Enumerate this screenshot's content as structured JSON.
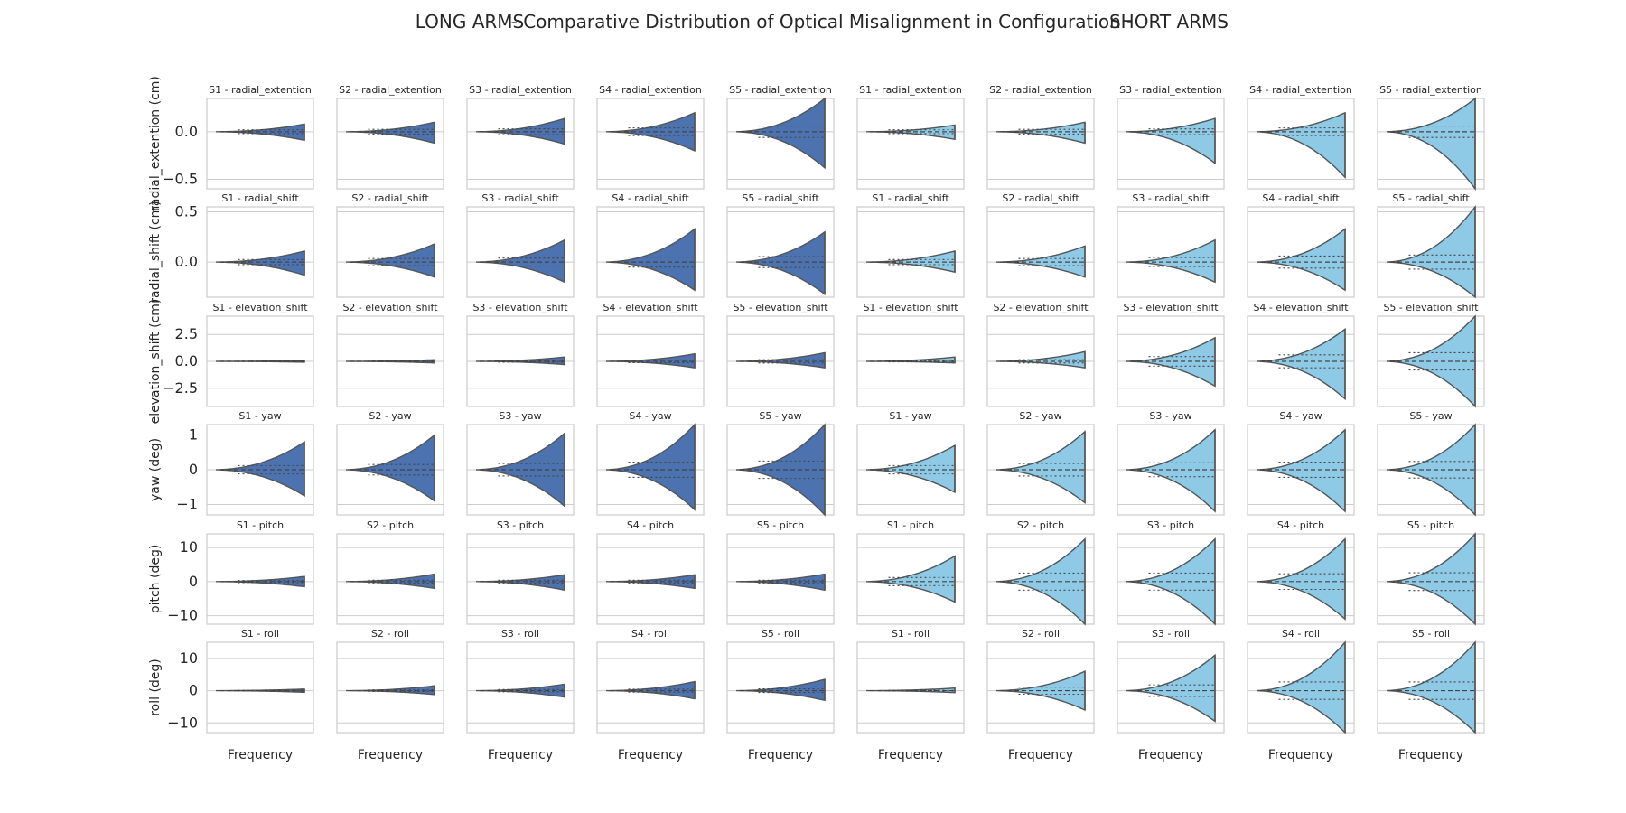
{
  "title": {
    "left": "LONG ARMS",
    "center": "- Comparative Distribution of Optical Misalignment in Configuration -",
    "right": "SHORT ARMS"
  },
  "colors": {
    "long_fill": "#4c72b0",
    "short_fill": "#8ecae6",
    "outline": "#555555",
    "grid": "#cccccc",
    "frame": "#cccccc"
  },
  "chart_data": {
    "type": "violin",
    "layout": "split half-violins, 6 rows x 10 columns; columns 1-5 LONG ARMS, columns 6-10 SHORT ARMS",
    "grid": true,
    "xlabel": "Frequency",
    "groups": [
      "LONG ARMS",
      "SHORT ARMS"
    ],
    "stages": [
      "S1",
      "S2",
      "S3",
      "S4",
      "S5"
    ],
    "rows": [
      {
        "param": "radial_extention",
        "ylabel": "radial_extention (cm)",
        "ylim": [
          -0.6,
          0.35
        ],
        "yticks": [
          0.0,
          -0.5
        ],
        "tick_labels": [
          "0.0",
          "−0.5"
        ],
        "long": [
          {
            "stage": "S1",
            "top": 0.08,
            "bottom": -0.09,
            "q_spread": 0.02
          },
          {
            "stage": "S2",
            "top": 0.1,
            "bottom": -0.12,
            "q_spread": 0.025
          },
          {
            "stage": "S3",
            "top": 0.14,
            "bottom": -0.13,
            "q_spread": 0.03
          },
          {
            "stage": "S4",
            "top": 0.2,
            "bottom": -0.2,
            "q_spread": 0.04
          },
          {
            "stage": "S5",
            "top": 0.35,
            "bottom": -0.38,
            "q_spread": 0.06
          }
        ],
        "short": [
          {
            "stage": "S1",
            "top": 0.07,
            "bottom": -0.08,
            "q_spread": 0.02
          },
          {
            "stage": "S2",
            "top": 0.1,
            "bottom": -0.12,
            "q_spread": 0.025
          },
          {
            "stage": "S3",
            "top": 0.14,
            "bottom": -0.33,
            "q_spread": 0.03
          },
          {
            "stage": "S4",
            "top": 0.2,
            "bottom": -0.48,
            "q_spread": 0.04
          },
          {
            "stage": "S5",
            "top": 0.35,
            "bottom": -0.6,
            "q_spread": 0.06
          }
        ]
      },
      {
        "param": "radial_shift",
        "ylabel": "radial_shift (cm)",
        "ylim": [
          -0.35,
          0.55
        ],
        "yticks": [
          0.5,
          0.0
        ],
        "tick_labels": [
          "0.5",
          "0.0"
        ],
        "long": [
          {
            "stage": "S1",
            "top": 0.11,
            "bottom": -0.13,
            "q_spread": 0.025
          },
          {
            "stage": "S2",
            "top": 0.18,
            "bottom": -0.15,
            "q_spread": 0.035
          },
          {
            "stage": "S3",
            "top": 0.22,
            "bottom": -0.2,
            "q_spread": 0.04
          },
          {
            "stage": "S4",
            "top": 0.33,
            "bottom": -0.28,
            "q_spread": 0.05
          },
          {
            "stage": "S5",
            "top": 0.3,
            "bottom": -0.32,
            "q_spread": 0.055
          }
        ],
        "short": [
          {
            "stage": "S1",
            "top": 0.11,
            "bottom": -0.1,
            "q_spread": 0.025
          },
          {
            "stage": "S2",
            "top": 0.16,
            "bottom": -0.15,
            "q_spread": 0.035
          },
          {
            "stage": "S3",
            "top": 0.22,
            "bottom": -0.2,
            "q_spread": 0.045
          },
          {
            "stage": "S4",
            "top": 0.33,
            "bottom": -0.28,
            "q_spread": 0.06
          },
          {
            "stage": "S5",
            "top": 0.55,
            "bottom": -0.35,
            "q_spread": 0.07
          }
        ]
      },
      {
        "param": "elevation_shift",
        "ylabel": "elevation_shift (cm)",
        "ylim": [
          -4.2,
          4.2
        ],
        "yticks": [
          2.5,
          0.0,
          -2.5
        ],
        "tick_labels": [
          "2.5",
          "0.0",
          "−2.5"
        ],
        "long": [
          {
            "stage": "S1",
            "top": 0.08,
            "bottom": -0.08,
            "q_spread": 0.02
          },
          {
            "stage": "S2",
            "top": 0.15,
            "bottom": -0.15,
            "q_spread": 0.03
          },
          {
            "stage": "S3",
            "top": 0.4,
            "bottom": -0.3,
            "q_spread": 0.08
          },
          {
            "stage": "S4",
            "top": 0.7,
            "bottom": -0.6,
            "q_spread": 0.12
          },
          {
            "stage": "S5",
            "top": 0.8,
            "bottom": -0.6,
            "q_spread": 0.15
          }
        ],
        "short": [
          {
            "stage": "S1",
            "top": 0.4,
            "bottom": -0.15,
            "q_spread": 0.05
          },
          {
            "stage": "S2",
            "top": 0.9,
            "bottom": -0.6,
            "q_spread": 0.15
          },
          {
            "stage": "S3",
            "top": 2.2,
            "bottom": -2.3,
            "q_spread": 0.45
          },
          {
            "stage": "S4",
            "top": 3.0,
            "bottom": -3.5,
            "q_spread": 0.6
          },
          {
            "stage": "S5",
            "top": 4.2,
            "bottom": -4.2,
            "q_spread": 0.8
          }
        ]
      },
      {
        "param": "yaw",
        "ylabel": "yaw (deg)",
        "ylim": [
          -1.3,
          1.3
        ],
        "yticks": [
          1,
          0,
          -1
        ],
        "tick_labels": [
          "1",
          "0",
          "−1"
        ],
        "long": [
          {
            "stage": "S1",
            "top": 0.8,
            "bottom": -0.75,
            "q_spread": 0.12
          },
          {
            "stage": "S2",
            "top": 1.0,
            "bottom": -0.9,
            "q_spread": 0.15
          },
          {
            "stage": "S3",
            "top": 1.05,
            "bottom": -1.05,
            "q_spread": 0.18
          },
          {
            "stage": "S4",
            "top": 1.3,
            "bottom": -1.15,
            "q_spread": 0.22
          },
          {
            "stage": "S5",
            "top": 1.3,
            "bottom": -1.3,
            "q_spread": 0.25
          }
        ],
        "short": [
          {
            "stage": "S1",
            "top": 0.7,
            "bottom": -0.65,
            "q_spread": 0.12
          },
          {
            "stage": "S2",
            "top": 1.1,
            "bottom": -0.95,
            "q_spread": 0.18
          },
          {
            "stage": "S3",
            "top": 1.15,
            "bottom": -1.2,
            "q_spread": 0.2
          },
          {
            "stage": "S4",
            "top": 1.15,
            "bottom": -1.2,
            "q_spread": 0.22
          },
          {
            "stage": "S5",
            "top": 1.3,
            "bottom": -1.3,
            "q_spread": 0.24
          }
        ]
      },
      {
        "param": "pitch",
        "ylabel": "pitch (deg)",
        "ylim": [
          -12.5,
          14
        ],
        "yticks": [
          10,
          0,
          -10
        ],
        "tick_labels": [
          "10",
          "0",
          "−10"
        ],
        "long": [
          {
            "stage": "S1",
            "top": 1.5,
            "bottom": -1.5,
            "q_spread": 0.3
          },
          {
            "stage": "S2",
            "top": 2.2,
            "bottom": -2.0,
            "q_spread": 0.4
          },
          {
            "stage": "S3",
            "top": 2.0,
            "bottom": -2.5,
            "q_spread": 0.4
          },
          {
            "stage": "S4",
            "top": 2.0,
            "bottom": -2.0,
            "q_spread": 0.4
          },
          {
            "stage": "S5",
            "top": 2.2,
            "bottom": -2.5,
            "q_spread": 0.4
          }
        ],
        "short": [
          {
            "stage": "S1",
            "top": 7.5,
            "bottom": -6.0,
            "q_spread": 1.2
          },
          {
            "stage": "S2",
            "top": 12.5,
            "bottom": -12.5,
            "q_spread": 2.5
          },
          {
            "stage": "S3",
            "top": 12.5,
            "bottom": -12.5,
            "q_spread": 2.5
          },
          {
            "stage": "S4",
            "top": 12.5,
            "bottom": -11.0,
            "q_spread": 2.3
          },
          {
            "stage": "S5",
            "top": 14.0,
            "bottom": -12.5,
            "q_spread": 2.6
          }
        ]
      },
      {
        "param": "roll",
        "ylabel": "roll (deg)",
        "ylim": [
          -13,
          15
        ],
        "yticks": [
          10,
          0,
          -10
        ],
        "tick_labels": [
          "10",
          "0",
          "−10"
        ],
        "long": [
          {
            "stage": "S1",
            "top": 0.5,
            "bottom": -0.5,
            "q_spread": 0.1
          },
          {
            "stage": "S2",
            "top": 1.5,
            "bottom": -1.2,
            "q_spread": 0.25
          },
          {
            "stage": "S3",
            "top": 2.0,
            "bottom": -2.0,
            "q_spread": 0.35
          },
          {
            "stage": "S4",
            "top": 2.8,
            "bottom": -2.5,
            "q_spread": 0.45
          },
          {
            "stage": "S5",
            "top": 3.5,
            "bottom": -3.0,
            "q_spread": 0.55
          }
        ],
        "short": [
          {
            "stage": "S1",
            "top": 0.8,
            "bottom": -0.6,
            "q_spread": 0.1
          },
          {
            "stage": "S2",
            "top": 6.0,
            "bottom": -6.0,
            "q_spread": 1.1
          },
          {
            "stage": "S3",
            "top": 11.0,
            "bottom": -9.5,
            "q_spread": 1.8
          },
          {
            "stage": "S4",
            "top": 15.0,
            "bottom": -13.0,
            "q_spread": 2.7
          },
          {
            "stage": "S5",
            "top": 15.0,
            "bottom": -13.0,
            "q_spread": 2.7
          }
        ]
      }
    ]
  }
}
